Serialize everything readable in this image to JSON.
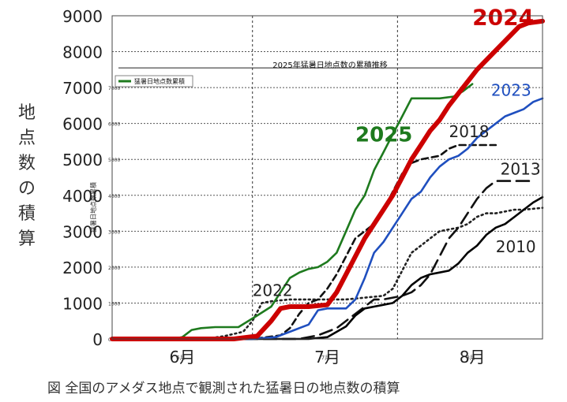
{
  "chart_data": {
    "type": "line",
    "title": "2025年猛暑日地点数の累積推移",
    "ylabel": "地点数の積算",
    "ylim": [
      0,
      9000
    ],
    "yticks": [
      0,
      1000,
      2000,
      3000,
      4000,
      5000,
      6000,
      7000,
      8000,
      9000
    ],
    "xlim": [
      0,
      92
    ],
    "x_unit": "days since June 1",
    "month_labels": [
      {
        "label": "6月",
        "x": 15
      },
      {
        "label": "7月",
        "x": 46
      },
      {
        "label": "8月",
        "x": 77
      }
    ],
    "month_boundaries": [
      30,
      61
    ],
    "grid": true,
    "legend": {
      "placement": "top-left",
      "entries": [
        "猛暑日地点数累積"
      ]
    },
    "inner_chart": {
      "title": "2025年猛暑日地点数の累積推移",
      "ylabel": "猛暑日地点数累積",
      "yticks": [
        0,
        1000,
        2000,
        3000,
        4000,
        5000,
        6000,
        7000
      ],
      "month_tick_labels": [
        "6月",
        "7月",
        "8月"
      ]
    },
    "series": [
      {
        "name": "2025",
        "color": "#1e7a1e",
        "style": "solid",
        "x": [
          0,
          13,
          15,
          17,
          19,
          22,
          27,
          31,
          34,
          36,
          38,
          40,
          42,
          44,
          46,
          48,
          50,
          52,
          54,
          56,
          58,
          60,
          62,
          64,
          66,
          68,
          70,
          73,
          75,
          77
        ],
        "values": [
          0,
          0,
          50,
          250,
          300,
          330,
          330,
          650,
          900,
          1300,
          1700,
          1850,
          1950,
          2000,
          2150,
          2400,
          3000,
          3600,
          4000,
          4700,
          5200,
          5700,
          6200,
          6700,
          6700,
          6700,
          6700,
          6750,
          6900,
          7100
        ]
      },
      {
        "name": "2024",
        "color": "#cc0000",
        "style": "solid-thick",
        "x": [
          0,
          20,
          26,
          31,
          34,
          36,
          38,
          42,
          46,
          48,
          50,
          52,
          54,
          56,
          58,
          60,
          62,
          64,
          66,
          68,
          70,
          72,
          75,
          78,
          81,
          84,
          87,
          89,
          92
        ],
        "values": [
          0,
          0,
          0,
          80,
          500,
          850,
          900,
          900,
          950,
          1300,
          1800,
          2300,
          2800,
          3200,
          3600,
          4000,
          4500,
          5000,
          5400,
          5800,
          6100,
          6500,
          7000,
          7500,
          7900,
          8300,
          8700,
          8800,
          8850
        ]
      },
      {
        "name": "2023",
        "color": "#1f4fbf",
        "style": "solid",
        "x": [
          0,
          30,
          35,
          39,
          42,
          44,
          46,
          50,
          52,
          54,
          56,
          58,
          60,
          62,
          64,
          66,
          68,
          70,
          72,
          74,
          76,
          78,
          80,
          82,
          84,
          86,
          88,
          90,
          92
        ],
        "values": [
          0,
          0,
          50,
          250,
          400,
          800,
          850,
          850,
          1100,
          1700,
          2400,
          2700,
          3100,
          3500,
          3900,
          4100,
          4500,
          4800,
          5000,
          5100,
          5300,
          5600,
          5800,
          6000,
          6200,
          6300,
          6400,
          6600,
          6700
        ]
      },
      {
        "name": "2022",
        "color": "#222222",
        "style": "dotted",
        "x": [
          0,
          20,
          24,
          28,
          30,
          32,
          34,
          38,
          42,
          46,
          50,
          54,
          58,
          60,
          62,
          64,
          66,
          68,
          70,
          72,
          74,
          76,
          78,
          80,
          82,
          84,
          86,
          88,
          92
        ],
        "values": [
          0,
          0,
          80,
          200,
          500,
          1000,
          1050,
          1100,
          1100,
          1100,
          1100,
          1150,
          1200,
          1400,
          1900,
          2400,
          2600,
          2800,
          3000,
          3050,
          3100,
          3200,
          3400,
          3500,
          3500,
          3550,
          3600,
          3600,
          3650
        ]
      },
      {
        "name": "2018",
        "color": "#111111",
        "style": "dashed",
        "x": [
          0,
          30,
          36,
          38,
          40,
          42,
          44,
          46,
          48,
          50,
          52,
          54,
          56,
          58,
          60,
          62,
          64,
          66,
          68,
          70,
          72,
          74,
          76,
          78,
          80,
          82
        ],
        "values": [
          0,
          0,
          100,
          300,
          700,
          1000,
          1100,
          1400,
          1800,
          2300,
          2800,
          3000,
          3200,
          3600,
          4100,
          4600,
          4900,
          5000,
          5050,
          5100,
          5300,
          5400,
          5400,
          5400,
          5400,
          5400
        ]
      },
      {
        "name": "2013",
        "color": "#111111",
        "style": "dashed-long",
        "x": [
          0,
          40,
          44,
          48,
          52,
          56,
          58,
          60,
          62,
          64,
          66,
          68,
          70,
          72,
          74,
          76,
          78,
          80,
          82,
          84,
          86,
          88,
          90
        ],
        "values": [
          0,
          0,
          100,
          300,
          700,
          1100,
          1100,
          1150,
          1200,
          1300,
          1500,
          1800,
          2300,
          2800,
          3100,
          3500,
          3900,
          4200,
          4400,
          4400,
          4400,
          4400,
          4400
        ]
      },
      {
        "name": "2010",
        "color": "#000000",
        "style": "solid",
        "x": [
          0,
          42,
          46,
          50,
          52,
          54,
          56,
          58,
          60,
          62,
          64,
          66,
          68,
          70,
          72,
          74,
          76,
          78,
          80,
          82,
          84,
          86,
          88,
          90,
          92
        ],
        "values": [
          0,
          0,
          50,
          350,
          650,
          850,
          900,
          950,
          1000,
          1200,
          1500,
          1700,
          1800,
          1850,
          1900,
          2100,
          2400,
          2600,
          2900,
          3100,
          3200,
          3400,
          3600,
          3800,
          3950
        ]
      }
    ],
    "series_labels": [
      {
        "text": "2024",
        "color": "#cc0000",
        "x": 77,
        "y": 8750
      },
      {
        "text": "2023",
        "color": "#1f4fbf",
        "x": 81,
        "y": 6770
      },
      {
        "text": "2025",
        "color": "#1e7a1e",
        "x": 52,
        "y": 5500
      },
      {
        "text": "2018",
        "color": "#222222",
        "x": 72,
        "y": 5620
      },
      {
        "text": "2013",
        "color": "#222222",
        "x": 83,
        "y": 4580
      },
      {
        "text": "2010",
        "color": "#222222",
        "x": 82,
        "y": 2420
      },
      {
        "text": "2022",
        "color": "#222222",
        "x": 30,
        "y": 1200
      }
    ]
  },
  "caption": "図 全国のアメダス地点で観測された猛暑日の地点数の積算"
}
